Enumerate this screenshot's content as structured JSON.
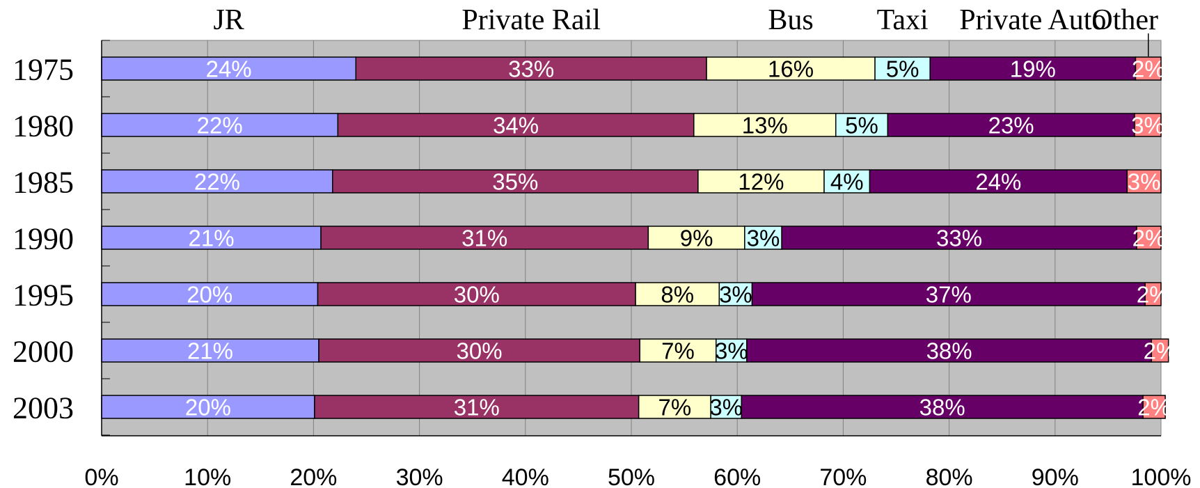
{
  "chart_data": {
    "type": "bar",
    "orientation": "horizontal",
    "stacked": true,
    "normalized": true,
    "categories": [
      "1975",
      "1980",
      "1985",
      "1990",
      "1995",
      "2000",
      "2003"
    ],
    "series": [
      {
        "name": "JR",
        "color": "#9999ff",
        "label_color": "#ffffff",
        "values": [
          24.0,
          22.3,
          21.8,
          20.7,
          20.4,
          20.5,
          20.1
        ],
        "labels": [
          "24%",
          "22%",
          "22%",
          "21%",
          "20%",
          "21%",
          "20%"
        ]
      },
      {
        "name": "Private Rail",
        "color": "#993366",
        "label_color": "#ffffff",
        "values": [
          33.1,
          33.6,
          34.5,
          30.9,
          30.0,
          30.3,
          30.6
        ],
        "labels": [
          "33%",
          "34%",
          "35%",
          "31%",
          "30%",
          "30%",
          "31%"
        ]
      },
      {
        "name": "Bus",
        "color": "#ffffcc",
        "label_color": "#000000",
        "values": [
          15.9,
          13.4,
          11.9,
          9.1,
          7.9,
          7.2,
          6.8
        ],
        "labels": [
          "16%",
          "13%",
          "12%",
          "9%",
          "8%",
          "7%",
          "7%"
        ]
      },
      {
        "name": "Taxi",
        "color": "#ccffff",
        "label_color": "#000000",
        "values": [
          5.2,
          4.9,
          4.3,
          3.5,
          3.1,
          2.9,
          2.9
        ],
        "labels": [
          "5%",
          "5%",
          "4%",
          "3%",
          "3%",
          "3%",
          "3%"
        ]
      },
      {
        "name": "Private Auto",
        "color": "#660066",
        "label_color": "#ffffff",
        "values": [
          19.4,
          23.3,
          24.3,
          33.5,
          37.1,
          38.2,
          37.9
        ],
        "labels": [
          "19%",
          "23%",
          "24%",
          "33%",
          "37%",
          "38%",
          "38%"
        ]
      },
      {
        "name": "Other",
        "color": "#ff8080",
        "label_color": "#ffffff",
        "values": [
          2.4,
          2.5,
          3.2,
          2.3,
          1.5,
          1.6,
          2.1
        ],
        "labels": [
          "2%",
          "3%",
          "3%",
          "2%",
          "2%",
          "2%",
          "2%"
        ]
      }
    ],
    "x_ticks": [
      "0%",
      "10%",
      "20%",
      "30%",
      "40%",
      "50%",
      "60%",
      "70%",
      "80%",
      "90%",
      "100%"
    ],
    "xlim": [
      0,
      100
    ],
    "grid": true,
    "legend": "top",
    "plot_background": "#c0c0c0"
  }
}
